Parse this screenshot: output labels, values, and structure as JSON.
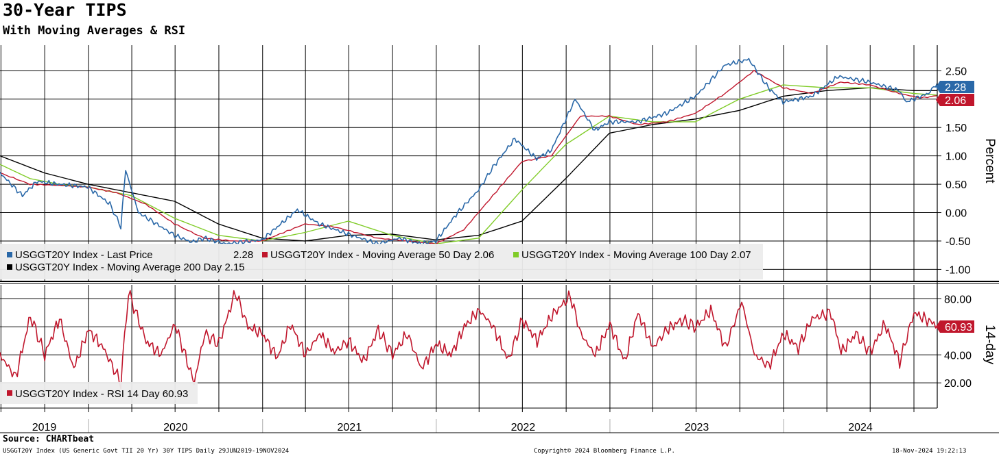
{
  "title": "30-Year TIPS",
  "subtitle": "With Moving Averages & RSI",
  "source": "Source: CHARTbeat",
  "footer": {
    "left": "USGGT20Y Index (US Generic Govt TII 20 Yr) 30Y TIPS  Daily 29JUN2019-19NOV2024",
    "center": "Copyright© 2024 Bloomberg Finance L.P.",
    "right": "18-Nov-2024 19:22:13"
  },
  "colors": {
    "last_price": "#2a68a8",
    "ma50": "#c0162c",
    "ma100": "#80cc28",
    "ma200": "#000000",
    "rsi": "#c0162c",
    "legend_bg": "#ececec"
  },
  "chart_data": [
    {
      "type": "line",
      "panel": "price",
      "ylabel": "Percent",
      "ylim": [
        -1.2,
        2.95
      ],
      "yticks": [
        "2.50",
        "1.50",
        "1.00",
        "0.50",
        "0.00",
        "-0.50",
        "-1.00"
      ],
      "x_range": [
        "2019-06-29",
        "2024-11-19"
      ],
      "x_labels": [
        "2019",
        "2020",
        "2021",
        "2022",
        "2023",
        "2024"
      ],
      "grid": true,
      "legend_position": "bottom-left",
      "last_value_labels": [
        {
          "series": "USGGT20Y Index - Last Price",
          "value": "2.28"
        },
        {
          "series": "USGGT20Y Index - Moving Average 50 Day",
          "value": "2.06"
        }
      ],
      "series": [
        {
          "name": "USGGT20Y Index - Last Price",
          "legend_label": "USGGT20Y Index - Last Price",
          "legend_value": "2.28",
          "color_key": "last_price",
          "x": [
            "2019-06-29",
            "2019-08-15",
            "2019-09-15",
            "2019-10-31",
            "2019-12-31",
            "2020-02-15",
            "2020-03-09",
            "2020-03-19",
            "2020-04-15",
            "2020-06-30",
            "2020-08-05",
            "2020-08-31",
            "2020-10-15",
            "2020-12-31",
            "2021-03-15",
            "2021-04-30",
            "2021-06-30",
            "2021-08-31",
            "2021-10-15",
            "2021-11-30",
            "2021-12-31",
            "2022-02-15",
            "2022-03-31",
            "2022-04-30",
            "2022-06-15",
            "2022-07-31",
            "2022-08-31",
            "2022-10-20",
            "2022-11-30",
            "2022-12-31",
            "2023-02-28",
            "2023-04-30",
            "2023-06-30",
            "2023-08-31",
            "2023-10-20",
            "2023-11-30",
            "2023-12-31",
            "2024-02-29",
            "2024-04-25",
            "2024-06-30",
            "2024-08-31",
            "2024-09-15",
            "2024-10-31",
            "2024-11-19"
          ],
          "y": [
            0.7,
            0.3,
            0.55,
            0.5,
            0.45,
            0.15,
            -0.25,
            0.75,
            0.0,
            -0.4,
            -0.52,
            -0.45,
            -0.55,
            -0.48,
            0.05,
            -0.2,
            -0.38,
            -0.55,
            -0.45,
            -0.55,
            -0.5,
            0.0,
            0.4,
            0.8,
            1.3,
            0.95,
            1.1,
            2.0,
            1.45,
            1.6,
            1.6,
            1.75,
            2.05,
            2.6,
            2.7,
            2.2,
            1.95,
            2.05,
            2.4,
            2.3,
            2.15,
            1.95,
            2.1,
            2.28
          ]
        },
        {
          "name": "USGGT20Y Index - Moving Average 50 Day",
          "legend_label": "USGGT20Y Index - Moving Average 50 Day",
          "legend_value": "2.06",
          "color_key": "ma50",
          "x": [
            "2019-06-29",
            "2019-08-31",
            "2019-10-31",
            "2019-12-31",
            "2020-02-29",
            "2020-04-30",
            "2020-06-30",
            "2020-08-31",
            "2020-10-31",
            "2020-12-31",
            "2021-03-31",
            "2021-05-31",
            "2021-08-31",
            "2021-10-31",
            "2021-12-31",
            "2022-02-28",
            "2022-04-30",
            "2022-06-30",
            "2022-08-31",
            "2022-10-31",
            "2022-12-31",
            "2023-02-28",
            "2023-04-30",
            "2023-06-30",
            "2023-08-31",
            "2023-10-31",
            "2023-12-31",
            "2024-02-29",
            "2024-04-30",
            "2024-06-30",
            "2024-08-31",
            "2024-10-15",
            "2024-11-19"
          ],
          "y": [
            0.7,
            0.5,
            0.48,
            0.45,
            0.35,
            0.15,
            -0.2,
            -0.45,
            -0.5,
            -0.5,
            -0.2,
            -0.25,
            -0.45,
            -0.5,
            -0.55,
            -0.3,
            0.3,
            0.9,
            1.0,
            1.7,
            1.7,
            1.55,
            1.6,
            1.75,
            2.1,
            2.5,
            2.2,
            2.1,
            2.3,
            2.25,
            2.1,
            2.02,
            2.06
          ]
        },
        {
          "name": "USGGT20Y Index - Moving Average 100 Day",
          "legend_label": "USGGT20Y Index - Moving Average 100 Day",
          "legend_value": "2.07",
          "color_key": "ma100",
          "x": [
            "2019-06-29",
            "2019-08-31",
            "2019-10-31",
            "2019-12-31",
            "2020-03-31",
            "2020-06-30",
            "2020-09-30",
            "2020-12-31",
            "2021-03-31",
            "2021-06-30",
            "2021-09-30",
            "2021-12-31",
            "2022-03-31",
            "2022-06-30",
            "2022-09-30",
            "2022-12-31",
            "2023-03-31",
            "2023-06-30",
            "2023-09-30",
            "2023-12-31",
            "2024-03-31",
            "2024-06-30",
            "2024-09-30",
            "2024-11-19"
          ],
          "y": [
            0.85,
            0.6,
            0.5,
            0.45,
            0.3,
            -0.1,
            -0.4,
            -0.5,
            -0.35,
            -0.15,
            -0.4,
            -0.55,
            -0.45,
            0.4,
            1.2,
            1.7,
            1.6,
            1.6,
            2.0,
            2.25,
            2.2,
            2.2,
            2.1,
            2.07
          ]
        },
        {
          "name": "USGGT20Y Index - Moving Average 200 Day",
          "legend_label": "USGGT20Y Index - Moving Average 200 Day",
          "legend_value": "2.15",
          "color_key": "ma200",
          "x": [
            "2019-06-29",
            "2019-09-30",
            "2019-12-31",
            "2020-03-31",
            "2020-06-30",
            "2020-09-30",
            "2020-12-31",
            "2021-03-31",
            "2021-06-30",
            "2021-09-30",
            "2021-12-31",
            "2022-03-31",
            "2022-06-30",
            "2022-09-30",
            "2022-12-31",
            "2023-03-31",
            "2023-06-30",
            "2023-09-30",
            "2023-12-31",
            "2024-03-31",
            "2024-06-30",
            "2024-09-30",
            "2024-11-19"
          ],
          "y": [
            1.0,
            0.7,
            0.5,
            0.35,
            0.2,
            -0.2,
            -0.45,
            -0.5,
            -0.4,
            -0.38,
            -0.48,
            -0.4,
            -0.15,
            0.6,
            1.4,
            1.55,
            1.65,
            1.8,
            2.05,
            2.15,
            2.2,
            2.15,
            2.15
          ]
        }
      ]
    },
    {
      "type": "line",
      "panel": "rsi",
      "ylabel": "14-day",
      "ylim": [
        2,
        90
      ],
      "yticks": [
        "80.00",
        "60.00",
        "40.00",
        "20.00"
      ],
      "grid": true,
      "legend_position": "bottom-left",
      "last_value_labels": [
        {
          "series": "USGGT20Y Index - RSI 14 Day",
          "value": "60.93"
        }
      ],
      "series": [
        {
          "name": "USGGT20Y Index - RSI 14 Day",
          "legend_label": "USGGT20Y Index - RSI 14 Day",
          "legend_value": "60.93",
          "color_key": "rsi",
          "x": [
            "2019-06-29",
            "2019-08-01",
            "2019-09-01",
            "2019-10-01",
            "2019-11-01",
            "2019-12-01",
            "2020-01-01",
            "2020-02-01",
            "2020-03-09",
            "2020-03-25",
            "2020-05-01",
            "2020-06-01",
            "2020-07-01",
            "2020-08-10",
            "2020-09-01",
            "2020-10-01",
            "2020-11-05",
            "2020-12-01",
            "2021-01-01",
            "2021-02-01",
            "2021-03-01",
            "2021-04-01",
            "2021-05-01",
            "2021-06-01",
            "2021-07-01",
            "2021-08-01",
            "2021-09-01",
            "2021-10-01",
            "2021-11-01",
            "2021-12-01",
            "2022-01-01",
            "2022-02-01",
            "2022-03-01",
            "2022-04-01",
            "2022-05-01",
            "2022-06-01",
            "2022-07-01",
            "2022-08-01",
            "2022-09-01",
            "2022-10-10",
            "2022-11-01",
            "2022-12-01",
            "2023-01-01",
            "2023-02-01",
            "2023-03-01",
            "2023-04-01",
            "2023-05-01",
            "2023-06-01",
            "2023-07-01",
            "2023-08-01",
            "2023-09-01",
            "2023-10-05",
            "2023-11-01",
            "2023-12-01",
            "2024-01-01",
            "2024-02-01",
            "2024-03-01",
            "2024-04-10",
            "2024-05-01",
            "2024-06-01",
            "2024-07-01",
            "2024-08-01",
            "2024-09-01",
            "2024-10-01",
            "2024-11-19"
          ],
          "y": [
            40,
            24,
            68,
            40,
            66,
            30,
            58,
            45,
            20,
            85,
            50,
            40,
            62,
            20,
            55,
            48,
            85,
            60,
            55,
            38,
            62,
            40,
            55,
            42,
            50,
            35,
            58,
            40,
            55,
            30,
            48,
            40,
            60,
            72,
            60,
            36,
            65,
            50,
            68,
            82,
            55,
            40,
            62,
            35,
            70,
            45,
            58,
            65,
            60,
            72,
            45,
            78,
            40,
            32,
            55,
            45,
            66,
            70,
            42,
            55,
            42,
            62,
            35,
            70,
            61
          ]
        }
      ]
    }
  ]
}
